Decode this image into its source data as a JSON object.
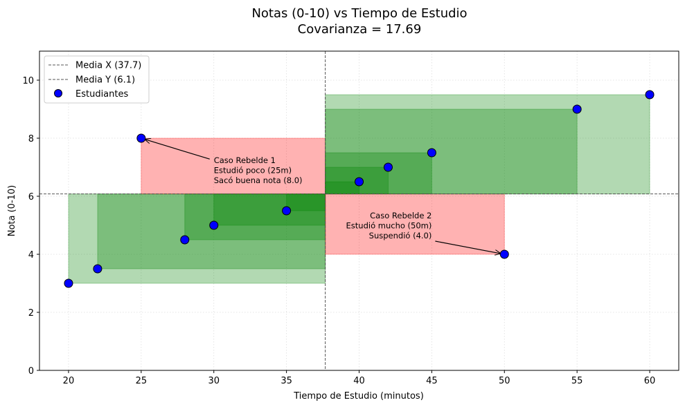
{
  "chart_data": {
    "type": "scatter",
    "title": "Notas (0-10) vs Tiempo de Estudio",
    "subtitle": "Covarianza = 17.69",
    "xlabel": "Tiempo de Estudio (minutos)",
    "ylabel": "Nota (0-10)",
    "xlim": [
      18,
      62
    ],
    "ylim": [
      0,
      11
    ],
    "xticks": [
      20,
      25,
      30,
      35,
      40,
      45,
      50,
      55,
      60
    ],
    "yticks": [
      0,
      2,
      4,
      6,
      8,
      10
    ],
    "grid": true,
    "legend_placement": "top-left",
    "mean_x": 37.67,
    "mean_y": 6.08,
    "legend": [
      "Media X (37.7)",
      "Media Y (6.1)",
      "Estudiantes"
    ],
    "series": [
      {
        "name": "Estudiantes",
        "x": [
          20,
          22,
          25,
          28,
          30,
          35,
          40,
          42,
          45,
          50,
          55,
          60
        ],
        "y": [
          3,
          3.5,
          8,
          4.5,
          5,
          5.5,
          6.5,
          7,
          7.5,
          4,
          9,
          9.5
        ]
      }
    ],
    "annotations": [
      {
        "lines": [
          "Caso Rebelde 1",
          "Estudió poco (25m)",
          "Sacó buena nota (8.0)"
        ],
        "point": [
          25,
          8
        ],
        "text_at": [
          30,
          6.9
        ],
        "align": "left"
      },
      {
        "lines": [
          "Caso Rebelde 2",
          "Estudió mucho (50m)",
          "Suspendió (4.0)"
        ],
        "point": [
          50,
          4
        ],
        "text_at": [
          45,
          5.0
        ],
        "align": "right"
      }
    ],
    "colors": {
      "point": "#0000ff",
      "positive_rect": "#008000",
      "negative_rect": "#ff0000",
      "mean_line": "#555555"
    }
  }
}
